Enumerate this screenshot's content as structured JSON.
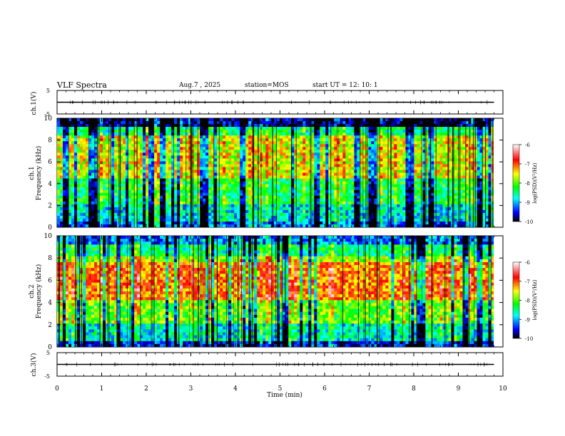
{
  "header": {
    "title": "VLF Spectra",
    "date": "Aug.7  , 2025",
    "station": "station=MOS",
    "start": "start  UT =   12: 10: 1"
  },
  "chart_data": [
    {
      "type": "line",
      "id": "ch1-waveform",
      "ylabel": "ch.1(V)",
      "yticks": [
        "5",
        "-5"
      ],
      "ylim": [
        -5,
        5
      ],
      "xlim": [
        0,
        10
      ],
      "series": [
        {
          "name": "ch.1",
          "value": 0
        }
      ]
    },
    {
      "type": "heatmap",
      "id": "ch1-spectrogram",
      "ylabel_top": "ch.1",
      "ylabel": "Frequency (kHz)",
      "yticks": [
        "0",
        "2",
        "4",
        "6",
        "8",
        "10"
      ],
      "ylim": [
        0,
        10
      ],
      "xlim": [
        0,
        9.8
      ],
      "colorbar": {
        "label": "log(PSD)(V²/Hz)",
        "ticks": [
          "-6",
          "-7",
          "-8",
          "-9",
          "-10"
        ],
        "range": [
          -10,
          -6
        ]
      }
    },
    {
      "type": "heatmap",
      "id": "ch2-spectrogram",
      "ylabel_top": "ch.2",
      "ylabel": "Frequency (kHz)",
      "yticks": [
        "0",
        "2",
        "4",
        "6",
        "8",
        "10"
      ],
      "ylim": [
        0,
        10
      ],
      "xlim": [
        0,
        9.8
      ],
      "colorbar": {
        "label": "log(PSD)(V²/Hz)",
        "ticks": [
          "-6",
          "-7",
          "-8",
          "-9",
          "-10"
        ],
        "range": [
          -10,
          -6
        ]
      }
    },
    {
      "type": "line",
      "id": "ch3-waveform",
      "ylabel": "ch.3(V)",
      "yticks": [
        "5",
        "-5"
      ],
      "ylim": [
        -5,
        5
      ],
      "xlim": [
        0,
        10
      ],
      "series": [
        {
          "name": "ch.3",
          "value": 0
        }
      ]
    }
  ],
  "xaxis": {
    "label": "Time  (min)",
    "ticks": [
      "0",
      "1",
      "2",
      "3",
      "4",
      "5",
      "6",
      "7",
      "8",
      "9",
      "10"
    ],
    "range": [
      0,
      10
    ]
  },
  "colors": {
    "colormap": [
      "#000000",
      "#00008b",
      "#0000ff",
      "#00ffff",
      "#00ff00",
      "#ffff00",
      "#ff0000",
      "#ffffff"
    ]
  }
}
